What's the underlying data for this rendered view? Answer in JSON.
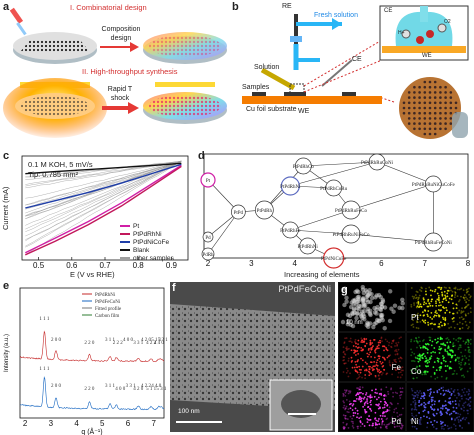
{
  "panel_a": {
    "letter": "a",
    "step1": "I. Combinatorial design",
    "arrow1": "Composition design",
    "step2": "II. High-throughput synthesis",
    "arrow2": "Rapid T shock"
  },
  "panel_b": {
    "letter": "b",
    "re": "RE",
    "fresh": "Fresh solution",
    "ce_top": "CE",
    "solution": "Solution",
    "ce": "CE",
    "samples": "Samples",
    "substrate": "Cu foil substrate",
    "we": "WE",
    "we_inset": "WE",
    "h_plus": "H+",
    "o2": "O2"
  },
  "panel_c": {
    "letter": "c",
    "cond1": "0.1 M KOH, 5 mV/s",
    "cond2": "Tip: 0.785 mm²",
    "ylabel": "Current (mA)",
    "xlabel": "E (V vs RHE)",
    "legend": [
      {
        "name": "Pt",
        "color": "#d01fa6"
      },
      {
        "name": "PtPdRhNi",
        "color": "#c2185b"
      },
      {
        "name": "PtPdNiCoFe",
        "color": "#1f3ea8"
      },
      {
        "name": "Blank",
        "color": "#111111"
      },
      {
        "name": "other samples",
        "color": "#9e9e9e"
      }
    ]
  },
  "chart_data": {
    "type": "line",
    "xlabel": "E (V vs RHE)",
    "ylabel": "Current (mA)",
    "xlim": [
      0.45,
      0.95
    ],
    "xticks": [
      "0.5",
      "0.6",
      "0.7",
      "0.8",
      "0.9"
    ],
    "series": [
      {
        "name": "Pt",
        "x": [
          0.46,
          0.55,
          0.65,
          0.75,
          0.85,
          0.93
        ],
        "y": [
          -0.88,
          -0.74,
          -0.58,
          -0.4,
          -0.2,
          -0.04
        ]
      },
      {
        "name": "PtPdRhNi",
        "x": [
          0.46,
          0.55,
          0.65,
          0.75,
          0.85,
          0.93
        ],
        "y": [
          -0.9,
          -0.77,
          -0.61,
          -0.43,
          -0.22,
          -0.05
        ]
      },
      {
        "name": "PtPdNiCoFe",
        "x": [
          0.46,
          0.55,
          0.65,
          0.75,
          0.85,
          0.93
        ],
        "y": [
          -0.45,
          -0.38,
          -0.3,
          -0.21,
          -0.11,
          -0.03
        ]
      },
      {
        "name": "Blank",
        "x": [
          0.46,
          0.55,
          0.65,
          0.75,
          0.85,
          0.93
        ],
        "y": [
          -0.12,
          -0.1,
          -0.08,
          -0.06,
          -0.04,
          -0.02
        ]
      }
    ]
  },
  "panel_d": {
    "letter": "d",
    "xlabel": "Increasing of elements",
    "xticks": [
      "2",
      "3",
      "4",
      "5",
      "6",
      "7",
      "8"
    ],
    "nodes": {
      "pt": "Pt",
      "pd": "Pd",
      "pdrh": "PdRh",
      "ptpd": "PtPd",
      "ptpdrh": "PtPdRh",
      "ptpdrhni": "PtPdRhNi",
      "ptpdrhfe": "PtPdRhFe",
      "ptpdrhco": "PtPdRhCo",
      "ptpdrhcoru": "PtPdRhCoRu",
      "ptpdrhruconi": "PtPdRhRuCoNi",
      "ptpdrhrufeco": "PtPdRhRuFeCo",
      "ptpdrhrunifeco": "PtPdRhRuNiFeCo",
      "ptpdrhrunicucofe": "PtPdRhRuNiCuCoFe",
      "ptpdrhrufeconi": "PtPdRhRuFeCoNi",
      "ptpdnicofe": "PtPdNiCoFe",
      "ptpdrhni2": "PtPdRhNi"
    }
  },
  "panel_e": {
    "letter": "e",
    "legend": [
      "PtPdRhNi",
      "PtPdFeCoNi",
      "Fitted profile",
      "Carbon film"
    ],
    "ylabel": "Intensity (a.u.)",
    "xlabel": "q (Å⁻¹)",
    "xticks": [
      "2",
      "3",
      "4",
      "5",
      "6",
      "7"
    ],
    "peaks_top": [
      "1 1 1",
      "2 0 0",
      "2 2 0",
      "3 1 1",
      "2 2 2",
      "4 0 0",
      "3 3 1",
      "4 2 0",
      "4 2 2",
      "5 1 1",
      "4 4 0",
      "5 3 1"
    ],
    "peaks_bottom": [
      "1 1 1",
      "2 0 0",
      "2 2 0",
      "3 1 1",
      "4 0 0",
      "3 3 1",
      "4 2 0",
      "4 2 2",
      "5 1 1",
      "4 4 0",
      "5 3 1"
    ]
  },
  "panel_f": {
    "letter": "f",
    "title": "PtPdFeCoNi",
    "scale": "100 nm"
  },
  "panel_g": {
    "letter": "g",
    "scale": "10 nm",
    "maps": [
      {
        "el": "Pt",
        "color": "#e6e600"
      },
      {
        "el": "Fe",
        "color": "#ff3030"
      },
      {
        "el": "Co",
        "color": "#30ff30"
      },
      {
        "el": "Pd",
        "color": "#ff40ff"
      },
      {
        "el": "Ni",
        "color": "#6060ff"
      }
    ]
  }
}
